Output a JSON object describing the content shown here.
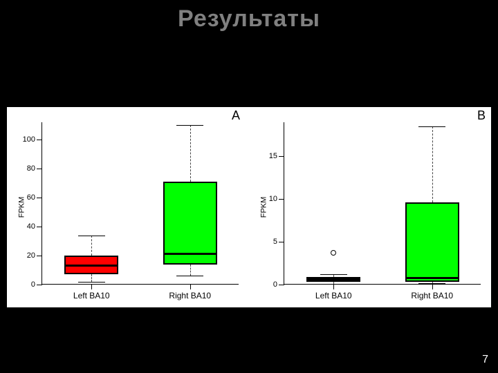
{
  "slide": {
    "title": "Результаты",
    "page_number": "7",
    "background": "#000000",
    "title_color": "#808080",
    "title_fontsize": 34
  },
  "figure": {
    "background": "#ffffff",
    "panels": [
      {
        "label": "A",
        "ylabel": "FPKM",
        "ylim": [
          0,
          112
        ],
        "yticks": [
          0,
          20,
          40,
          60,
          80,
          100
        ],
        "categories": [
          "Left BA10",
          "Right BA10"
        ],
        "boxes": [
          {
            "q1": 7,
            "median": 13,
            "q3": 20,
            "whisker_low": 2,
            "whisker_high": 34,
            "fill": "#ff0000",
            "border": "#000000",
            "outliers": []
          },
          {
            "q1": 14,
            "median": 21,
            "q3": 71,
            "whisker_low": 6,
            "whisker_high": 110,
            "fill": "#00ff00",
            "border": "#000000",
            "outliers": []
          }
        ]
      },
      {
        "label": "B",
        "ylabel": "FPKM",
        "ylim": [
          0,
          19
        ],
        "yticks": [
          0,
          5,
          10,
          15
        ],
        "categories": [
          "Left BA10",
          "Right BA10"
        ],
        "boxes": [
          {
            "q1": 0.3,
            "median": 0.6,
            "q3": 0.9,
            "whisker_low": 0.1,
            "whisker_high": 1.2,
            "fill": "#a00000",
            "border": "#000000",
            "outliers": [
              3.7
            ]
          },
          {
            "q1": 0.3,
            "median": 0.8,
            "q3": 9.6,
            "whisker_low": 0.2,
            "whisker_high": 18.5,
            "fill": "#00ff00",
            "border": "#000000",
            "outliers": []
          }
        ]
      }
    ]
  }
}
